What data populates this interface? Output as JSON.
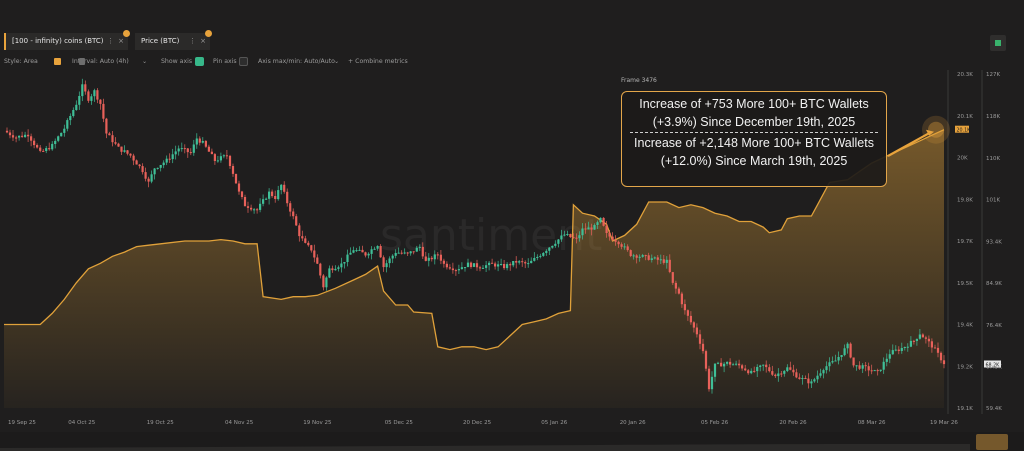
{
  "toolbar": {
    "tab1_label": "[100 - infinity) coins (BTC)",
    "tab2_label": "Price (BTC)",
    "tab_menu": "⋮",
    "tab_close": "×",
    "style_label": "Style: Area",
    "interval_label": "Interval: Auto (4h)",
    "show_axis_label": "Show axis",
    "pin_axis_label": "Pin axis",
    "axis_label": "Axis max/min: Auto/Auto",
    "combine_label": "+ Combine metrics",
    "dropdown_glyph": "⌄"
  },
  "colors": {
    "area_line": "#e0a13a",
    "area_fill": "#e0a13a",
    "up_candle": "#3fbf97",
    "down_candle": "#e8615a",
    "accent": "#e8a33c"
  },
  "watermark": "santiment",
  "frame_label": "Frame 3476",
  "callout": {
    "line1": "Increase of +753 More 100+ BTC Wallets",
    "line2": "(+3.9%) Since December 19th, 2025",
    "line3": "Increase of +2,148 More 100+ BTC Wallets",
    "line4": "(+12.0%) Since March 19th, 2025"
  },
  "chart_data": {
    "type": "area",
    "x_ticks": [
      "19 Sep 25",
      "04 Oct 25",
      "19 Oct 25",
      "04 Nov 25",
      "19 Nov 25",
      "05 Dec 25",
      "20 Dec 25",
      "05 Jan 26",
      "20 Jan 26",
      "05 Feb 26",
      "20 Feb 26",
      "08 Mar 26",
      "19 Mar 26"
    ],
    "y1_ticks": [
      "20.3K",
      "20.1K",
      "20K",
      "19.8K",
      "19.7K",
      "19.5K",
      "19.4K",
      "19.2K",
      "19.1K"
    ],
    "y2_ticks": [
      "127K",
      "118K",
      "110K",
      "101K",
      "93.4K",
      "84.9K",
      "76.4K",
      "67.9K",
      "59.4K"
    ],
    "y1_range": [
      19100,
      20300
    ],
    "y2_range": [
      59400,
      127000
    ],
    "current_y1_tag": "20.1K",
    "current_y2_tag": "68.2K",
    "series": [
      {
        "name": "[100 - infinity) coins (BTC)",
        "type": "area",
        "axis": "left",
        "points": [
          [
            0,
            19400
          ],
          [
            6,
            19400
          ],
          [
            8,
            19440
          ],
          [
            10,
            19490
          ],
          [
            12,
            19550
          ],
          [
            14,
            19600
          ],
          [
            16,
            19620
          ],
          [
            18,
            19645
          ],
          [
            20,
            19660
          ],
          [
            22,
            19680
          ],
          [
            24,
            19685
          ],
          [
            26,
            19690
          ],
          [
            30,
            19700
          ],
          [
            34,
            19700
          ],
          [
            36,
            19705
          ],
          [
            38,
            19700
          ],
          [
            40,
            19690
          ],
          [
            42,
            19690
          ],
          [
            43,
            19500
          ],
          [
            46,
            19490
          ],
          [
            48,
            19500
          ],
          [
            50,
            19500
          ],
          [
            52,
            19505
          ],
          [
            55,
            19530
          ],
          [
            58,
            19560
          ],
          [
            60,
            19580
          ],
          [
            62,
            19610
          ],
          [
            63,
            19520
          ],
          [
            65,
            19470
          ],
          [
            67,
            19470
          ],
          [
            68,
            19445
          ],
          [
            71,
            19440
          ],
          [
            72,
            19320
          ],
          [
            74,
            19310
          ],
          [
            76,
            19320
          ],
          [
            78,
            19320
          ],
          [
            80,
            19310
          ],
          [
            82,
            19320
          ],
          [
            84,
            19360
          ],
          [
            86,
            19400
          ],
          [
            88,
            19410
          ],
          [
            90,
            19420
          ],
          [
            92,
            19440
          ],
          [
            94,
            19450
          ],
          [
            94.5,
            19830
          ],
          [
            96,
            19800
          ],
          [
            98,
            19790
          ],
          [
            100,
            19760
          ],
          [
            101,
            19700
          ],
          [
            103,
            19720
          ],
          [
            105,
            19760
          ],
          [
            107,
            19840
          ],
          [
            110,
            19840
          ],
          [
            112,
            19820
          ],
          [
            114,
            19830
          ],
          [
            116,
            19820
          ],
          [
            118,
            19800
          ],
          [
            120,
            19790
          ],
          [
            122,
            19770
          ],
          [
            124,
            19770
          ],
          [
            126,
            19750
          ],
          [
            127,
            19730
          ],
          [
            129,
            19740
          ],
          [
            130,
            19780
          ],
          [
            132,
            19790
          ],
          [
            134,
            19790
          ],
          [
            135,
            19830
          ],
          [
            137,
            19910
          ],
          [
            140,
            19920
          ],
          [
            142,
            19950
          ],
          [
            144,
            19980
          ],
          [
            146,
            20000
          ],
          [
            148,
            20020
          ],
          [
            150,
            20040
          ],
          [
            152,
            20060
          ],
          [
            154,
            20080
          ],
          [
            156,
            20100
          ]
        ]
      },
      {
        "name": "Price (BTC)",
        "type": "candlestick",
        "axis": "right",
        "points": [
          [
            0,
            115500
          ],
          [
            2,
            114200
          ],
          [
            4,
            114800
          ],
          [
            6,
            111000
          ],
          [
            8,
            112500
          ],
          [
            10,
            116000
          ],
          [
            12,
            121000
          ],
          [
            13,
            124500
          ],
          [
            14,
            122000
          ],
          [
            15,
            123500
          ],
          [
            16,
            121000
          ],
          [
            17,
            115000
          ],
          [
            19,
            112000
          ],
          [
            21,
            110500
          ],
          [
            23,
            107500
          ],
          [
            24,
            105000
          ],
          [
            25,
            108000
          ],
          [
            27,
            109500
          ],
          [
            29,
            112000
          ],
          [
            31,
            111000
          ],
          [
            32,
            114000
          ],
          [
            33,
            113000
          ],
          [
            35,
            109500
          ],
          [
            37,
            110500
          ],
          [
            38,
            107000
          ],
          [
            39,
            103000
          ],
          [
            40,
            100500
          ],
          [
            42,
            99500
          ],
          [
            44,
            103000
          ],
          [
            45,
            102000
          ],
          [
            46,
            104500
          ],
          [
            47,
            101000
          ],
          [
            48,
            98000
          ],
          [
            49,
            94500
          ],
          [
            50,
            92500
          ],
          [
            51,
            91500
          ],
          [
            52,
            88500
          ],
          [
            53,
            84000
          ],
          [
            54,
            87500
          ],
          [
            56,
            88500
          ],
          [
            58,
            91500
          ],
          [
            60,
            90500
          ],
          [
            62,
            92500
          ],
          [
            63,
            88000
          ],
          [
            65,
            91000
          ],
          [
            67,
            90500
          ],
          [
            69,
            92000
          ],
          [
            70,
            89000
          ],
          [
            72,
            90500
          ],
          [
            73,
            88500
          ],
          [
            75,
            87500
          ],
          [
            77,
            88500
          ],
          [
            79,
            88000
          ],
          [
            81,
            88500
          ],
          [
            83,
            88000
          ],
          [
            85,
            89000
          ],
          [
            87,
            88500
          ],
          [
            89,
            90500
          ],
          [
            91,
            92500
          ],
          [
            93,
            94500
          ],
          [
            95,
            93500
          ],
          [
            96,
            95500
          ],
          [
            98,
            96000
          ],
          [
            99,
            97500
          ],
          [
            100,
            94500
          ],
          [
            102,
            93000
          ],
          [
            104,
            90500
          ],
          [
            106,
            90000
          ],
          [
            108,
            89500
          ],
          [
            110,
            89000
          ],
          [
            111,
            84500
          ],
          [
            112,
            82500
          ],
          [
            113,
            79000
          ],
          [
            115,
            74500
          ],
          [
            116,
            71000
          ],
          [
            117,
            63500
          ],
          [
            118,
            68000
          ],
          [
            120,
            68500
          ],
          [
            122,
            68000
          ],
          [
            124,
            66500
          ],
          [
            126,
            68000
          ],
          [
            128,
            66000
          ],
          [
            130,
            67500
          ],
          [
            132,
            65500
          ],
          [
            134,
            64500
          ],
          [
            136,
            67500
          ],
          [
            138,
            69000
          ],
          [
            140,
            72000
          ],
          [
            141,
            68000
          ],
          [
            143,
            67500
          ],
          [
            145,
            66500
          ],
          [
            147,
            70500
          ],
          [
            149,
            71500
          ],
          [
            151,
            73000
          ],
          [
            152,
            74500
          ],
          [
            154,
            72000
          ],
          [
            156,
            68500
          ]
        ]
      }
    ]
  }
}
